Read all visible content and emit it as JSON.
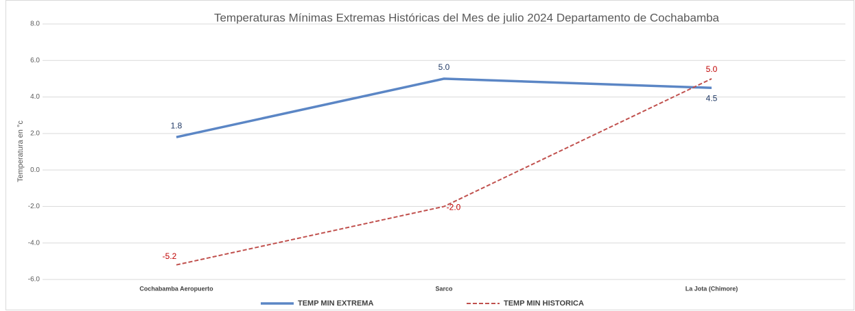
{
  "chart_data": {
    "type": "line",
    "title": "Temperaturas  Mínimas Extremas Históricas del Mes de julio 2024 Departamento de Cochabamba",
    "y_label": "Temperatura en °c",
    "categories": [
      "Cochabamba Aeropuerto",
      "Sarco",
      "La Jota (Chimore)"
    ],
    "series": [
      {
        "name": "TEMP MIN EXTREMA",
        "color": "#5b86c5",
        "dash": false,
        "label_color": "#1f3864",
        "values": [
          1.8,
          5.0,
          4.5
        ],
        "value_labels": [
          "1.8",
          "5.0",
          "4.5"
        ]
      },
      {
        "name": "TEMP MIN HISTORICA",
        "color": "#c0504d",
        "dash": true,
        "label_color": "#c00000",
        "values": [
          -5.2,
          -2.0,
          5.0
        ],
        "value_labels": [
          "-5.2",
          "-2.0",
          "5.0"
        ]
      }
    ],
    "ylim": [
      -6,
      8
    ],
    "yticks": [
      {
        "value": -6,
        "label": "-6.0"
      },
      {
        "value": -4,
        "label": "-4.0"
      },
      {
        "value": -2,
        "label": "-2.0"
      },
      {
        "value": 0,
        "label": "0.0"
      },
      {
        "value": 2,
        "label": "2.0"
      },
      {
        "value": 4,
        "label": "4.0"
      },
      {
        "value": 6,
        "label": "6.0"
      },
      {
        "value": 8,
        "label": "8.0"
      }
    ],
    "grid": true,
    "legend": "bottom"
  }
}
